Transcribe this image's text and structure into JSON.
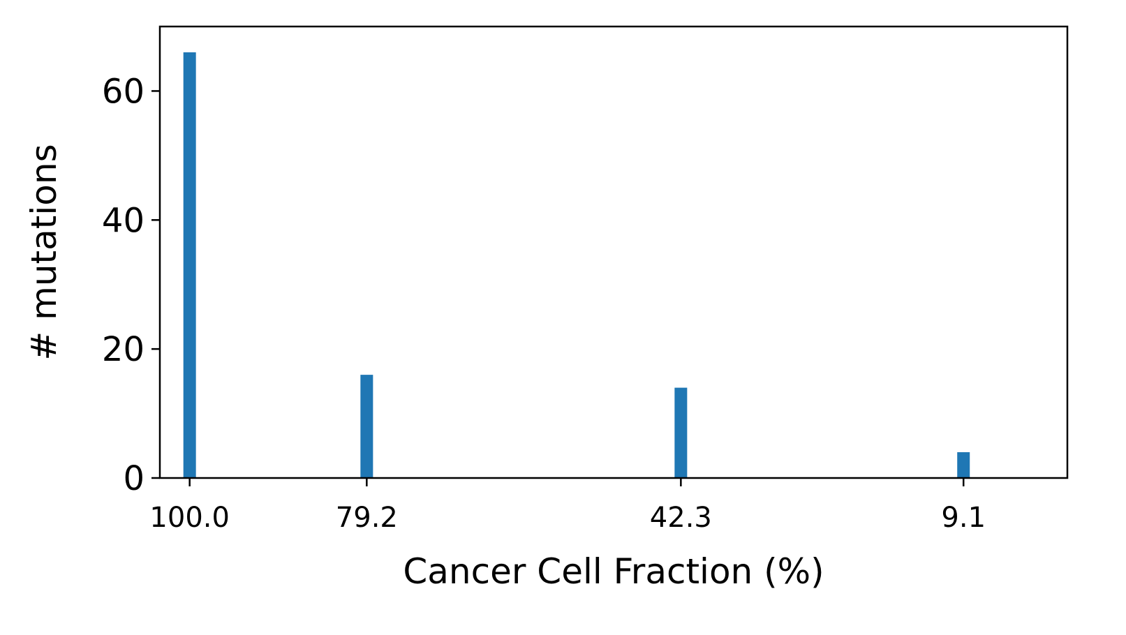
{
  "chart_data": {
    "type": "bar",
    "title": "",
    "xlabel": "Cancer Cell Fraction (%)",
    "ylabel": "# mutations",
    "ylim": [
      0,
      70
    ],
    "xlim": [
      103.5,
      -3.1
    ],
    "x": [
      100.0,
      79.2,
      42.3,
      9.1
    ],
    "x_tick_labels": [
      "100.0",
      "79.2",
      "42.3",
      "9.1"
    ],
    "values": [
      66,
      16,
      14,
      4
    ],
    "y_ticks": [
      0,
      20,
      40,
      60
    ],
    "bar_color": "#1f77b4",
    "grid": false,
    "legend": "none"
  }
}
